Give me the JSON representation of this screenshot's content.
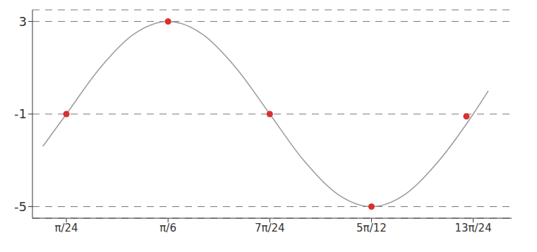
{
  "chart_data": {
    "type": "line",
    "xlim": [
      0,
      1.85
    ],
    "ylim": [
      -5.5,
      3.5
    ],
    "xticks": [
      {
        "value": 0.1309,
        "label": "π/24"
      },
      {
        "value": 0.5236,
        "label": "π/6"
      },
      {
        "value": 0.9163,
        "label": "7π/24"
      },
      {
        "value": 1.309,
        "label": "5π/12"
      },
      {
        "value": 1.7017,
        "label": "13π/24"
      }
    ],
    "yticks": [
      -5,
      -1,
      3
    ],
    "grid": true,
    "series": [
      {
        "type": "line",
        "color": "#9a9a9a",
        "marker": "none",
        "x": [
          0.04,
          0.1309,
          0.2618,
          0.3927,
          0.5236,
          0.6545,
          0.7854,
          0.9163,
          1.0472,
          1.1781,
          1.309,
          1.4399,
          1.5708,
          1.7017,
          1.76
        ],
        "values": [
          -2.4,
          -1,
          1,
          2.46,
          3,
          2.46,
          1,
          -1,
          -3,
          -4.46,
          -5,
          -4.46,
          -3,
          -1,
          0
        ]
      },
      {
        "type": "scatter",
        "color": "#d93030",
        "marker": "circle",
        "x": [
          0.1309,
          0.5236,
          0.9163,
          1.309,
          1.6755
        ],
        "values": [
          -1,
          3,
          -1,
          -5,
          -1.1
        ]
      }
    ]
  }
}
